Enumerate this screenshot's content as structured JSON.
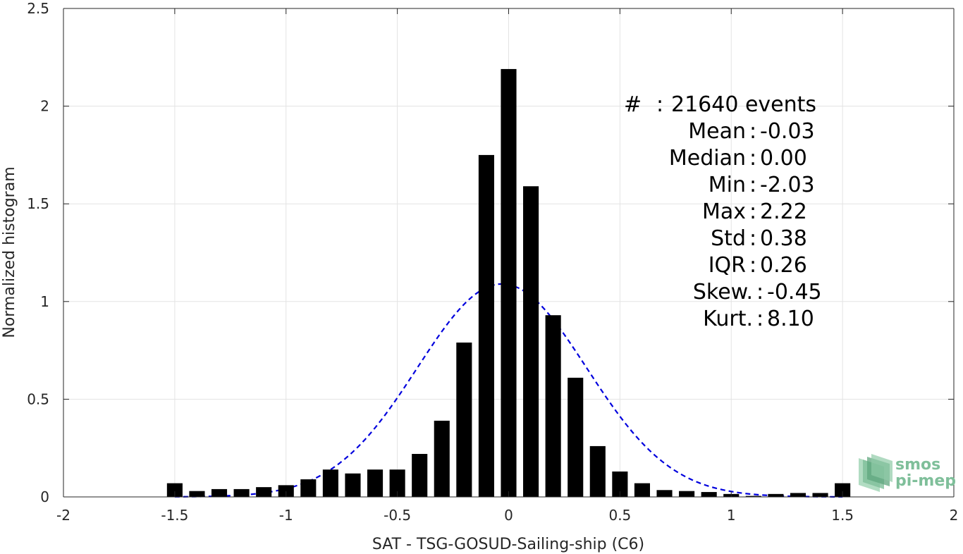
{
  "chart_data": {
    "type": "bar",
    "title": "",
    "xlabel": "SAT - TSG-GOSUD-Sailing-ship (C6)",
    "ylabel": "Normalized histogram",
    "xlim": [
      -2,
      2
    ],
    "ylim": [
      0,
      2.5
    ],
    "grid": true,
    "x_ticks": [
      -2,
      -1.5,
      -1,
      -0.5,
      0,
      0.5,
      1,
      1.5,
      2
    ],
    "x_tick_labels": [
      "-2",
      "-1.5",
      "-1",
      "-0.5",
      "0",
      "0.5",
      "1",
      "1.5",
      "2"
    ],
    "y_ticks": [
      0,
      0.5,
      1,
      1.5,
      2,
      2.5
    ],
    "y_tick_labels": [
      "0",
      "0.5",
      "1",
      "1.5",
      "2",
      "2.5"
    ],
    "bar_width": 0.07,
    "bar_color": "#000000",
    "bars": {
      "x": [
        -1.5,
        -1.4,
        -1.3,
        -1.2,
        -1.1,
        -1.0,
        -0.9,
        -0.8,
        -0.7,
        -0.6,
        -0.5,
        -0.4,
        -0.3,
        -0.2,
        -0.1,
        0.0,
        0.1,
        0.2,
        0.3,
        0.4,
        0.5,
        0.6,
        0.7,
        0.8,
        0.9,
        1.0,
        1.1,
        1.2,
        1.3,
        1.4,
        1.5
      ],
      "values": [
        0.07,
        0.03,
        0.04,
        0.04,
        0.05,
        0.06,
        0.09,
        0.14,
        0.12,
        0.14,
        0.14,
        0.22,
        0.39,
        0.79,
        1.75,
        2.19,
        1.59,
        0.93,
        0.61,
        0.26,
        0.13,
        0.07,
        0.035,
        0.03,
        0.025,
        0.015,
        0.005,
        0.015,
        0.02,
        0.02,
        0.07
      ]
    },
    "fit_curve": {
      "style": "dashed",
      "color": "#0000dd",
      "mean": -0.03,
      "std": 0.38,
      "peak": 1.09,
      "x_range": [
        -1.5,
        1.5
      ]
    },
    "stats_lines": [
      {
        "label": "#",
        "sep": " : ",
        "value": "21640 events"
      },
      {
        "label": "Mean",
        "sep": " : ",
        "value": "-0.03"
      },
      {
        "label": "Median",
        "sep": " : ",
        "value": "0.00"
      },
      {
        "label": "Min",
        "sep": " : ",
        "value": "-2.03"
      },
      {
        "label": "Max",
        "sep": " : ",
        "value": "2.22"
      },
      {
        "label": "Std",
        "sep": " : ",
        "value": "0.38"
      },
      {
        "label": "IQR",
        "sep": " : ",
        "value": "0.26"
      },
      {
        "label": "Skew.",
        "sep": " : ",
        "value": "-0.45"
      },
      {
        "label": "Kurt.",
        "sep": " : ",
        "value": "8.10"
      }
    ]
  },
  "logo": {
    "line1": "smos",
    "line2": "pi-mep",
    "color": "#7fbf9a"
  }
}
